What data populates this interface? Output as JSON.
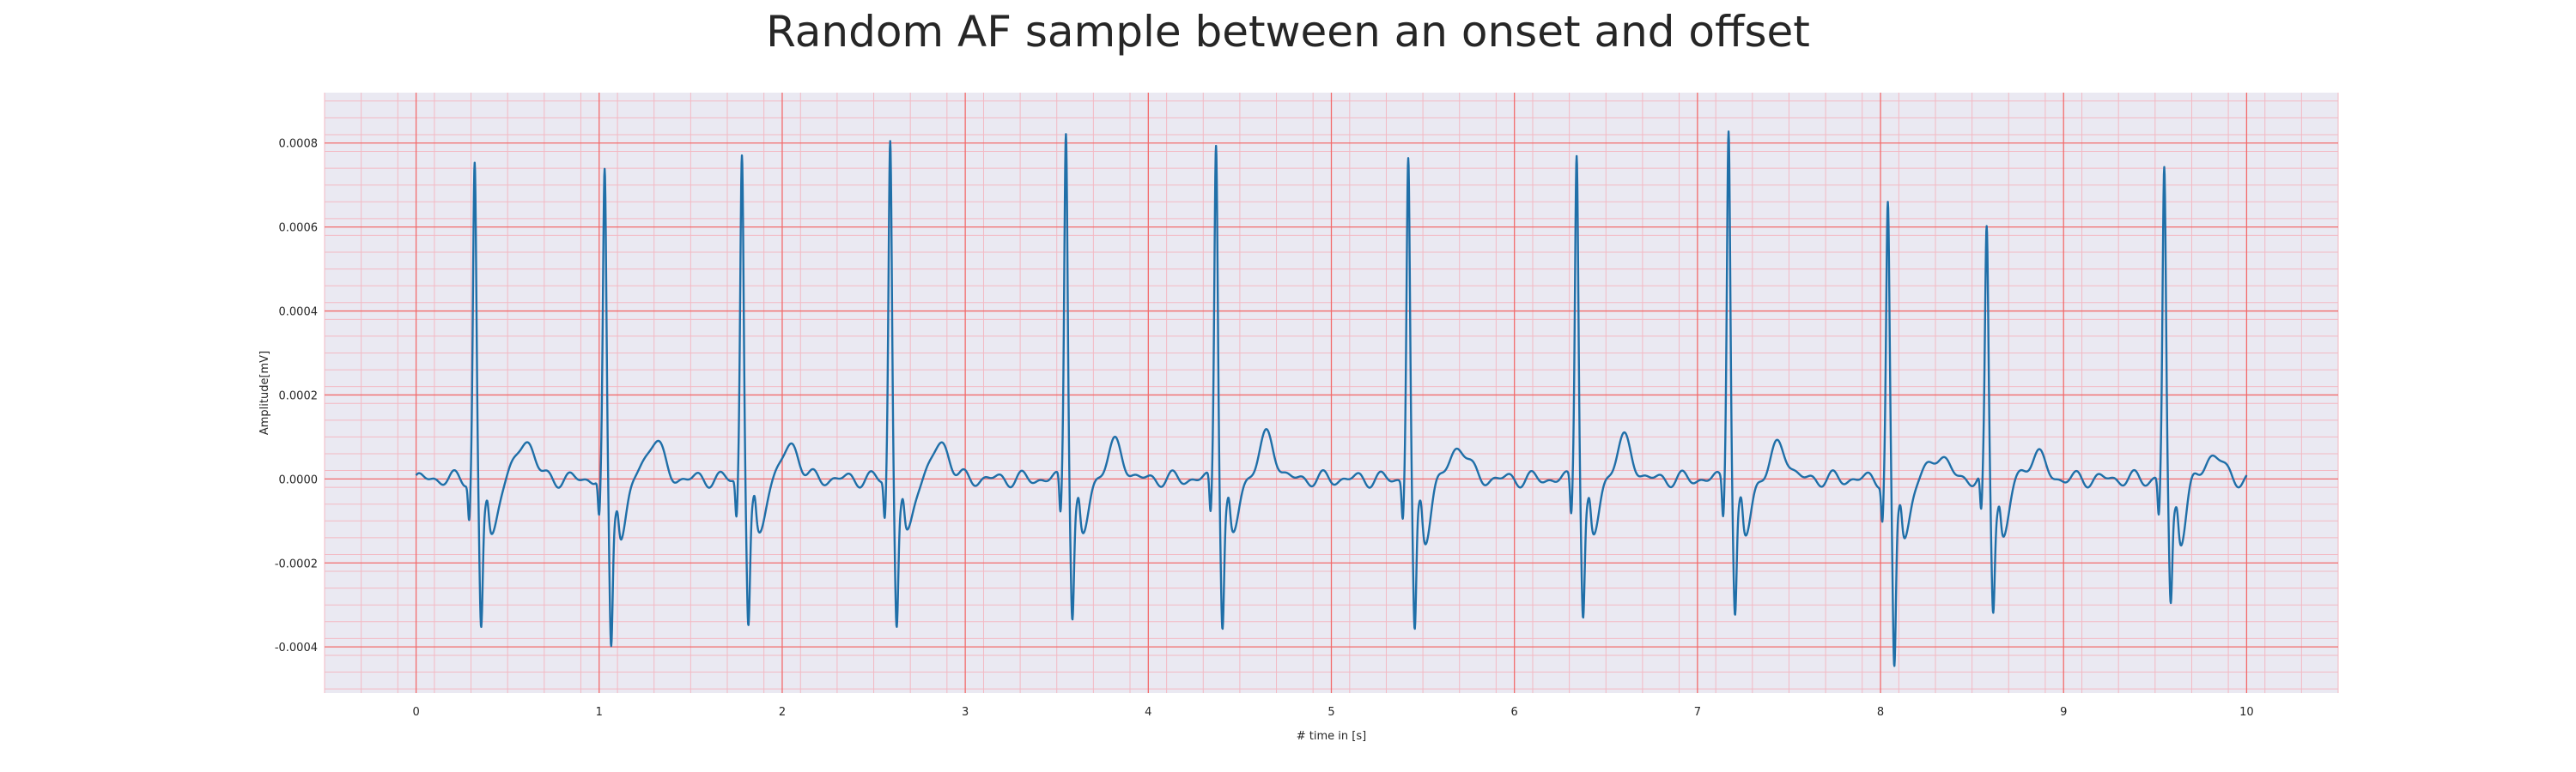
{
  "chart_data": {
    "type": "line",
    "title": "Random AF sample between an onset and offset",
    "xlabel": "# time in [s]",
    "ylabel": "Amplitude[mV]",
    "xlim": [
      -0.5,
      10.5
    ],
    "ylim": [
      -0.00051,
      0.00092
    ],
    "x_ticks": [
      0,
      1,
      2,
      3,
      4,
      5,
      6,
      7,
      8,
      9,
      10
    ],
    "x_tick_labels": [
      "0",
      "1",
      "2",
      "3",
      "4",
      "5",
      "6",
      "7",
      "8",
      "9",
      "10"
    ],
    "y_ticks": [
      -0.0004,
      -0.0002,
      0.0,
      0.0002,
      0.0004,
      0.0006,
      0.0008
    ],
    "y_tick_labels": [
      "-0.0004",
      "-0.0002",
      "0.0000",
      "0.0002",
      "0.0004",
      "0.0006",
      "0.0008"
    ],
    "grid": true,
    "background_color": "#eae9f2",
    "major_grid_color": "#f26b6b",
    "minor_grid_color": "#f3b9c3",
    "series": [
      {
        "color": "#1f6fa8",
        "x_range": [
          0,
          10
        ],
        "beats": [
          {
            "t": 0.32,
            "peak": 0.00075,
            "trough": -0.00033
          },
          {
            "t": 1.03,
            "peak": 0.00072,
            "trough": -0.00037
          },
          {
            "t": 1.78,
            "peak": 0.00078,
            "trough": -0.00032
          },
          {
            "t": 2.59,
            "peak": 0.00081,
            "trough": -0.00032
          },
          {
            "t": 3.55,
            "peak": 0.00084,
            "trough": -0.0003
          },
          {
            "t": 4.37,
            "peak": 0.00081,
            "trough": -0.00032
          },
          {
            "t": 5.42,
            "peak": 0.00077,
            "trough": -0.00035
          },
          {
            "t": 6.34,
            "peak": 0.00079,
            "trough": -0.0003
          },
          {
            "t": 7.17,
            "peak": 0.00085,
            "trough": -0.0003
          },
          {
            "t": 8.04,
            "peak": 0.00065,
            "trough": -0.00043
          },
          {
            "t": 8.58,
            "peak": 0.00059,
            "trough": -0.00028
          },
          {
            "t": 9.55,
            "peak": 0.00074,
            "trough": -0.00028
          }
        ],
        "t_waves": [
          {
            "t": 0.6,
            "amp": 9.5e-05
          },
          {
            "t": 1.3,
            "amp": 9.5e-05
          },
          {
            "t": 2.05,
            "amp": 8e-05
          },
          {
            "t": 2.87,
            "amp": 8.5e-05
          },
          {
            "t": 3.82,
            "amp": 8e-05
          },
          {
            "t": 4.65,
            "amp": 0.0001
          },
          {
            "t": 5.7,
            "amp": 8e-05
          },
          {
            "t": 6.6,
            "amp": 9e-05
          },
          {
            "t": 7.45,
            "amp": 8e-05
          },
          {
            "t": 8.32,
            "amp": 6e-05
          },
          {
            "t": 8.85,
            "amp": 6e-05
          },
          {
            "t": 9.82,
            "amp": 6e-05
          }
        ]
      }
    ]
  }
}
